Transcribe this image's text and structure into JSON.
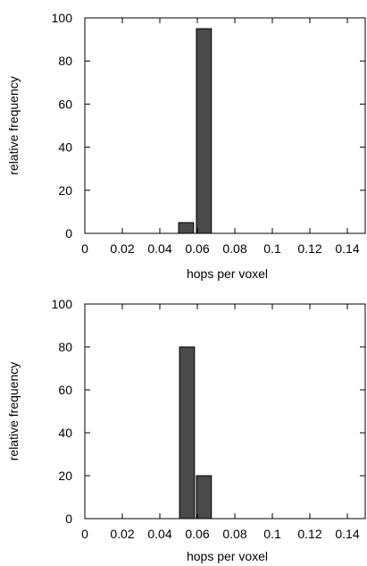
{
  "chart_data": [
    {
      "type": "bar",
      "title": "",
      "xlabel": "hops per voxel",
      "ylabel": "relative frequency",
      "xlim": [
        0,
        0.15
      ],
      "ylim": [
        0,
        100
      ],
      "x_ticks": [
        "0",
        "0.02",
        "0.04",
        "0.06",
        "0.08",
        "0.1",
        "0.12",
        "0.14"
      ],
      "y_ticks": [
        "0",
        "20",
        "40",
        "60",
        "80",
        "100"
      ],
      "bin_width": 0.008,
      "bins": [
        {
          "x": 0.054,
          "value": 5
        },
        {
          "x": 0.0635,
          "value": 95
        }
      ],
      "bar_color": "#4a4a4a",
      "grid": false
    },
    {
      "type": "bar",
      "title": "",
      "xlabel": "hops per voxel",
      "ylabel": "relative frequency",
      "xlim": [
        0,
        0.15
      ],
      "ylim": [
        0,
        100
      ],
      "x_ticks": [
        "0",
        "0.02",
        "0.04",
        "0.06",
        "0.08",
        "0.1",
        "0.12",
        "0.14"
      ],
      "y_ticks": [
        "0",
        "20",
        "40",
        "60",
        "80",
        "100"
      ],
      "bin_width": 0.008,
      "bins": [
        {
          "x": 0.0545,
          "value": 80
        },
        {
          "x": 0.0635,
          "value": 20
        }
      ],
      "bar_color": "#4a4a4a",
      "grid": false
    }
  ]
}
